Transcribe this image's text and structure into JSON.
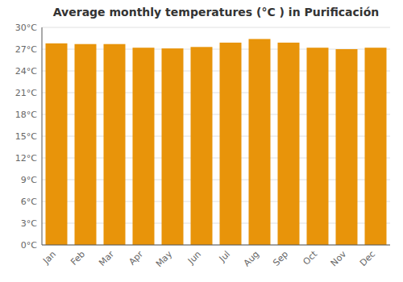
{
  "chart_data": {
    "type": "bar",
    "title": "Average monthly temperatures (°C ) in Purificación",
    "categories": [
      "Jan",
      "Feb",
      "Mar",
      "Apr",
      "May",
      "Jun",
      "Jul",
      "Aug",
      "Sep",
      "Oct",
      "Nov",
      "Dec"
    ],
    "values": [
      27.8,
      27.7,
      27.7,
      27.2,
      27.1,
      27.3,
      27.9,
      28.4,
      27.9,
      27.2,
      27.0,
      27.2
    ],
    "color": "#E8940A",
    "ylim": [
      0,
      30
    ],
    "yticks": [
      {
        "value": 0,
        "label": "0°C"
      },
      {
        "value": 3,
        "label": "3°C"
      },
      {
        "value": 6,
        "label": "6°C"
      },
      {
        "value": 9,
        "label": "9°C"
      },
      {
        "value": 12,
        "label": "12°C"
      },
      {
        "value": 15,
        "label": "15°C"
      },
      {
        "value": 18,
        "label": "18°C"
      },
      {
        "value": 21,
        "label": "21°C"
      },
      {
        "value": 24,
        "label": "24°C"
      },
      {
        "value": 27,
        "label": "27°C"
      },
      {
        "value": 30,
        "label": "30°C"
      }
    ],
    "grid": true
  }
}
